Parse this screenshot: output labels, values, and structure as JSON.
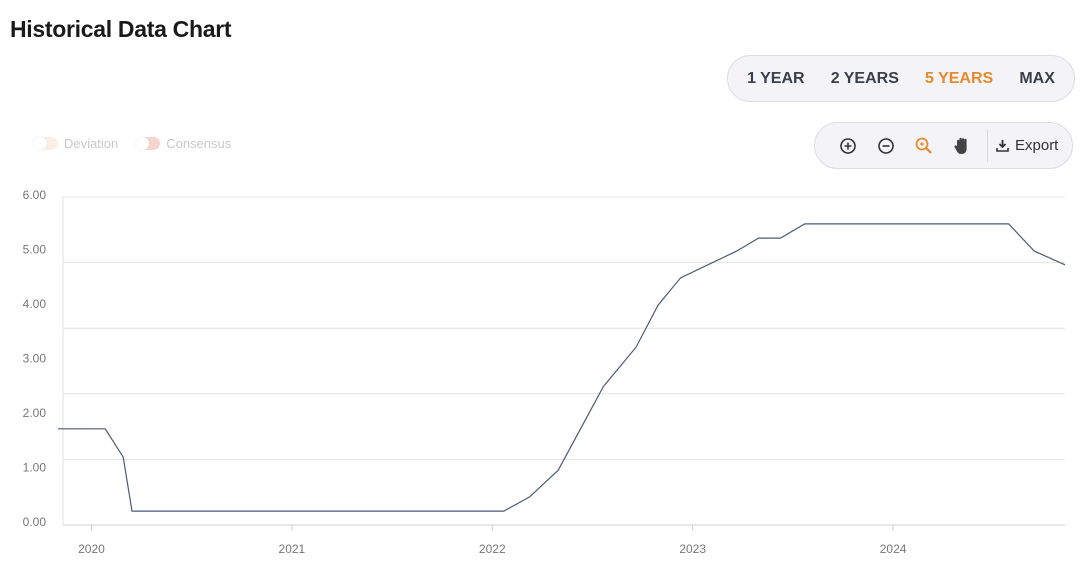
{
  "title": "Historical Data Chart",
  "range_buttons": [
    {
      "label": "1 YEAR",
      "active": false
    },
    {
      "label": "2 YEARS",
      "active": false
    },
    {
      "label": "5 YEARS",
      "active": true
    },
    {
      "label": "MAX",
      "active": false
    }
  ],
  "toolbar": {
    "icons": [
      "zoom-in-icon",
      "zoom-out-icon",
      "selection-zoom-icon",
      "pan-hand-icon"
    ],
    "export_label": "Export"
  },
  "legend": [
    {
      "label": "Deviation",
      "color": "#fbeee4"
    },
    {
      "label": "Consensus",
      "color": "#f5d5cf"
    }
  ],
  "colors": {
    "accent": "#e8892b",
    "line": "#4a5a78"
  },
  "chart_data": {
    "type": "line",
    "title": "",
    "xlabel": "",
    "ylabel": "",
    "ylim": [
      0,
      6
    ],
    "y_ticks": [
      "0.00",
      "1.00",
      "2.00",
      "3.00",
      "4.00",
      "5.00",
      "6.00"
    ],
    "x_ticks": [
      "2020",
      "2021",
      "2022",
      "2023",
      "2024"
    ],
    "xlim": [
      "2019-11-01",
      "2024-11-10"
    ],
    "grid": true,
    "series": [
      {
        "points": [
          [
            "2019-11-01",
            1.71
          ],
          [
            "2020-01-26",
            1.71
          ],
          [
            "2020-02-28",
            1.19
          ],
          [
            "2020-03-15",
            0.2
          ],
          [
            "2022-01-22",
            0.2
          ],
          [
            "2022-03-10",
            0.46
          ],
          [
            "2022-05-01",
            0.95
          ],
          [
            "2022-07-22",
            2.48
          ],
          [
            "2022-09-20",
            3.21
          ],
          [
            "2022-10-30",
            3.98
          ],
          [
            "2022-12-10",
            4.48
          ],
          [
            "2023-03-22",
            4.97
          ],
          [
            "2023-05-01",
            5.21
          ],
          [
            "2023-06-10",
            5.21
          ],
          [
            "2023-07-24",
            5.47
          ],
          [
            "2024-07-30",
            5.47
          ],
          [
            "2024-09-15",
            4.97
          ],
          [
            "2024-11-10",
            4.72
          ]
        ]
      }
    ]
  }
}
